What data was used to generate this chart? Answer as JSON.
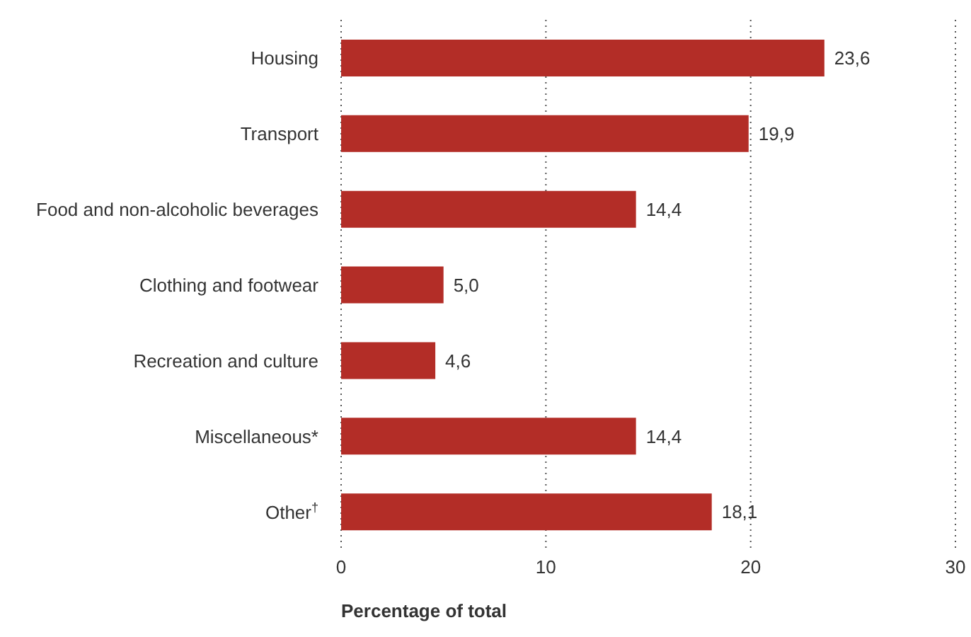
{
  "chart_data": {
    "type": "bar",
    "orientation": "horizontal",
    "xlabel": "Percentage of total",
    "categories": [
      "Housing",
      "Transport",
      "Food and non-alcoholic beverages",
      "Clothing and footwear",
      "Recreation and culture",
      "Miscellaneous*",
      "Other$^{†}$"
    ],
    "values": [
      23.6,
      19.9,
      14.4,
      5.0,
      4.6,
      14.4,
      18.1
    ],
    "value_labels": [
      "23,6",
      "19,9",
      "14,4",
      "5,0",
      "4,6",
      "14,4",
      "18,1"
    ],
    "color": "#b32d27",
    "xlim": [
      0,
      30
    ],
    "xticks": [
      0,
      10,
      20,
      30
    ],
    "grid": "x"
  }
}
